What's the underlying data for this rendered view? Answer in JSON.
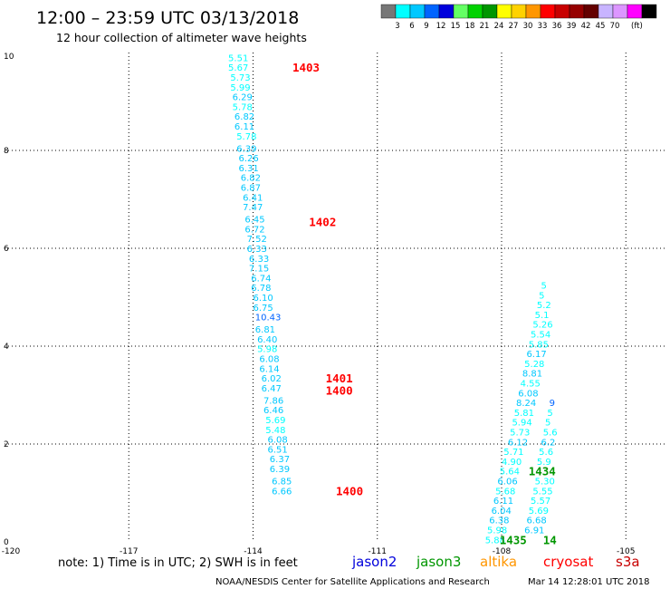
{
  "header": {
    "title": "12:00 – 23:59 UTC 03/13/2018",
    "subtitle": "12 hour collection of altimeter wave heights"
  },
  "colorbar": {
    "colors": [
      "#777777",
      "#00ffff",
      "#00c8ff",
      "#0064ff",
      "#0000dc",
      "#64ff64",
      "#00d200",
      "#009600",
      "#ffff00",
      "#ffd200",
      "#ff9600",
      "#ff0000",
      "#c80000",
      "#960000",
      "#640000",
      "#c8b4ff",
      "#dc96ff",
      "#ff00ff",
      "#000000"
    ],
    "labels": [
      "3",
      "6",
      "9",
      "12",
      "15",
      "18",
      "21",
      "24",
      "27",
      "30",
      "33",
      "36",
      "39",
      "42",
      "45",
      "70"
    ],
    "unit": "(ft)"
  },
  "notes": {
    "note": "note:  1) Time is in UTC;  2) SWH is in feet",
    "footer_left": "NOAA/NESDIS Center for Satellite Applications and Research",
    "footer_right": "Mar 14 12:28:01 UTC 2018"
  },
  "satellites": [
    {
      "name": "jason2",
      "color": "#0000dc"
    },
    {
      "name": "jason3",
      "color": "#009600"
    },
    {
      "name": "altika",
      "color": "#ff9600"
    },
    {
      "name": "cryosat",
      "color": "#ff0000"
    },
    {
      "name": "s3a",
      "color": "#c80000"
    }
  ],
  "chart_data": {
    "type": "scatter",
    "xlim": [
      -120,
      -104
    ],
    "ylim": [
      0,
      10
    ],
    "x_ticks": [
      "-120",
      "-117",
      "-114",
      "-111",
      "-108",
      "-105"
    ],
    "y_ticks": [
      "0",
      "2",
      "4",
      "6",
      "8",
      "10"
    ],
    "grid": true,
    "tracks": [
      {
        "name": "track-1",
        "points": [
          {
            "x": -114.6,
            "y": 9.9,
            "label": "5.51",
            "color": "#00ffff"
          },
          {
            "x": -114.6,
            "y": 9.7,
            "label": "5.67",
            "color": "#00ffff"
          },
          {
            "x": -114.55,
            "y": 9.5,
            "label": "5.73",
            "color": "#00ffff"
          },
          {
            "x": -114.55,
            "y": 9.3,
            "label": "5.99",
            "color": "#00ffff"
          },
          {
            "x": -114.5,
            "y": 9.1,
            "label": "6.29",
            "color": "#00c8ff"
          },
          {
            "x": -114.5,
            "y": 8.9,
            "label": "5.78",
            "color": "#00ffff"
          },
          {
            "x": -114.45,
            "y": 8.7,
            "label": "6.82",
            "color": "#00c8ff"
          },
          {
            "x": -114.45,
            "y": 8.5,
            "label": "6.11",
            "color": "#00c8ff"
          },
          {
            "x": -114.4,
            "y": 8.3,
            "label": "5.78",
            "color": "#00ffff"
          },
          {
            "x": -114.4,
            "y": 8.05,
            "label": "6.39",
            "color": "#00c8ff"
          },
          {
            "x": -114.35,
            "y": 7.85,
            "label": "6.26",
            "color": "#00c8ff"
          },
          {
            "x": -114.35,
            "y": 7.65,
            "label": "6.31",
            "color": "#00c8ff"
          },
          {
            "x": -114.3,
            "y": 7.45,
            "label": "6.82",
            "color": "#00c8ff"
          },
          {
            "x": -114.3,
            "y": 7.25,
            "label": "6.87",
            "color": "#00c8ff"
          },
          {
            "x": -114.25,
            "y": 7.05,
            "label": "6.41",
            "color": "#00c8ff"
          },
          {
            "x": -114.25,
            "y": 6.85,
            "label": "7.47",
            "color": "#00c8ff"
          },
          {
            "x": -114.2,
            "y": 6.6,
            "label": "6.45",
            "color": "#00c8ff"
          },
          {
            "x": -114.2,
            "y": 6.4,
            "label": "6.72",
            "color": "#00c8ff"
          },
          {
            "x": -114.15,
            "y": 6.2,
            "label": "7.52",
            "color": "#00c8ff"
          },
          {
            "x": -114.15,
            "y": 6.0,
            "label": "6.33",
            "color": "#00c8ff"
          },
          {
            "x": -114.1,
            "y": 5.8,
            "label": "6.33",
            "color": "#00c8ff"
          },
          {
            "x": -114.1,
            "y": 5.6,
            "label": "7.15",
            "color": "#00c8ff"
          },
          {
            "x": -114.05,
            "y": 5.4,
            "label": "6.74",
            "color": "#00c8ff"
          },
          {
            "x": -114.05,
            "y": 5.2,
            "label": "6.78",
            "color": "#00c8ff"
          },
          {
            "x": -114.0,
            "y": 5.0,
            "label": "6.10",
            "color": "#00c8ff"
          },
          {
            "x": -114.0,
            "y": 4.8,
            "label": "6.75",
            "color": "#00c8ff"
          },
          {
            "x": -113.95,
            "y": 4.6,
            "label": "10.43",
            "color": "#0064ff"
          },
          {
            "x": -113.95,
            "y": 4.35,
            "label": "6.81",
            "color": "#00c8ff"
          },
          {
            "x": -113.9,
            "y": 4.15,
            "label": "6.40",
            "color": "#00c8ff"
          },
          {
            "x": -113.9,
            "y": 3.95,
            "label": "5.98",
            "color": "#00ffff"
          },
          {
            "x": -113.85,
            "y": 3.75,
            "label": "6.08",
            "color": "#00c8ff"
          },
          {
            "x": -113.85,
            "y": 3.55,
            "label": "6.14",
            "color": "#00c8ff"
          },
          {
            "x": -113.8,
            "y": 3.35,
            "label": "6.02",
            "color": "#00c8ff"
          },
          {
            "x": -113.8,
            "y": 3.15,
            "label": "6.47",
            "color": "#00c8ff"
          },
          {
            "x": -113.75,
            "y": 2.9,
            "label": "7.86",
            "color": "#00c8ff"
          },
          {
            "x": -113.75,
            "y": 2.7,
            "label": "6.46",
            "color": "#00c8ff"
          },
          {
            "x": -113.7,
            "y": 2.5,
            "label": "5.69",
            "color": "#00ffff"
          },
          {
            "x": -113.7,
            "y": 2.3,
            "label": "5.48",
            "color": "#00ffff"
          },
          {
            "x": -113.65,
            "y": 2.1,
            "label": "6.08",
            "color": "#00c8ff"
          },
          {
            "x": -113.65,
            "y": 1.9,
            "label": "6.51",
            "color": "#00c8ff"
          },
          {
            "x": -113.6,
            "y": 1.7,
            "label": "6.37",
            "color": "#00c8ff"
          },
          {
            "x": -113.6,
            "y": 1.5,
            "label": "6.39",
            "color": "#00c8ff"
          },
          {
            "x": -113.55,
            "y": 1.25,
            "label": "6.85",
            "color": "#00c8ff"
          },
          {
            "x": -113.55,
            "y": 1.05,
            "label": "6.66",
            "color": "#00c8ff"
          }
        ]
      },
      {
        "name": "track-2",
        "points": [
          {
            "x": -108.4,
            "y": 0.05,
            "label": "5.88",
            "color": "#00ffff"
          },
          {
            "x": -108.35,
            "y": 0.25,
            "label": "5.98",
            "color": "#00ffff"
          },
          {
            "x": -108.3,
            "y": 0.45,
            "label": "6.38",
            "color": "#00c8ff"
          },
          {
            "x": -108.25,
            "y": 0.65,
            "label": "6.04",
            "color": "#00c8ff"
          },
          {
            "x": -108.2,
            "y": 0.85,
            "label": "6.11",
            "color": "#00c8ff"
          },
          {
            "x": -108.15,
            "y": 1.05,
            "label": "5.68",
            "color": "#00ffff"
          },
          {
            "x": -108.1,
            "y": 1.25,
            "label": "6.06",
            "color": "#00c8ff"
          },
          {
            "x": -108.05,
            "y": 1.45,
            "label": "5.64",
            "color": "#00ffff"
          },
          {
            "x": -108.0,
            "y": 1.65,
            "label": "4.90",
            "color": "#00ffff"
          },
          {
            "x": -107.95,
            "y": 1.85,
            "label": "5.71",
            "color": "#00ffff"
          },
          {
            "x": -107.85,
            "y": 2.05,
            "label": "6.12",
            "color": "#00c8ff"
          },
          {
            "x": -107.8,
            "y": 2.25,
            "label": "5.73",
            "color": "#00ffff"
          },
          {
            "x": -107.75,
            "y": 2.45,
            "label": "5.94",
            "color": "#00ffff"
          },
          {
            "x": -107.7,
            "y": 2.65,
            "label": "5.81",
            "color": "#00ffff"
          },
          {
            "x": -107.65,
            "y": 2.85,
            "label": "8.24",
            "color": "#00c8ff"
          },
          {
            "x": -107.6,
            "y": 3.05,
            "label": "6.08",
            "color": "#00c8ff"
          },
          {
            "x": -107.55,
            "y": 3.25,
            "label": "4.55",
            "color": "#00ffff"
          },
          {
            "x": -107.5,
            "y": 3.45,
            "label": "8.81",
            "color": "#00c8ff"
          },
          {
            "x": -107.45,
            "y": 3.65,
            "label": "5.28",
            "color": "#00ffff"
          },
          {
            "x": -107.4,
            "y": 3.85,
            "label": "6.17",
            "color": "#00c8ff"
          },
          {
            "x": -107.35,
            "y": 4.05,
            "label": "5.85",
            "color": "#00ffff"
          },
          {
            "x": -107.3,
            "y": 4.25,
            "label": "5.54",
            "color": "#00ffff"
          },
          {
            "x": -107.25,
            "y": 4.45,
            "label": "5.26",
            "color": "#00ffff"
          },
          {
            "x": -107.2,
            "y": 4.65,
            "label": "5.1",
            "color": "#00ffff"
          },
          {
            "x": -107.15,
            "y": 4.85,
            "label": "5.2",
            "color": "#00ffff"
          },
          {
            "x": -107.1,
            "y": 5.05,
            "label": "5",
            "color": "#00ffff"
          },
          {
            "x": -107.05,
            "y": 5.25,
            "label": "5",
            "color": "#00ffff"
          }
        ]
      },
      {
        "name": "track-3",
        "points": [
          {
            "x": -107.45,
            "y": 0.25,
            "label": "6.91",
            "color": "#00c8ff"
          },
          {
            "x": -107.4,
            "y": 0.45,
            "label": "6.68",
            "color": "#00c8ff"
          },
          {
            "x": -107.35,
            "y": 0.65,
            "label": "5.69",
            "color": "#00ffff"
          },
          {
            "x": -107.3,
            "y": 0.85,
            "label": "5.57",
            "color": "#00ffff"
          },
          {
            "x": -107.25,
            "y": 1.05,
            "label": "5.55",
            "color": "#00ffff"
          },
          {
            "x": -107.2,
            "y": 1.25,
            "label": "5.30",
            "color": "#00ffff"
          },
          {
            "x": -107.15,
            "y": 1.65,
            "label": "5.9",
            "color": "#00ffff"
          },
          {
            "x": -107.1,
            "y": 1.85,
            "label": "5.6",
            "color": "#00ffff"
          },
          {
            "x": -107.05,
            "y": 2.05,
            "label": "6.2",
            "color": "#00c8ff"
          },
          {
            "x": -107.0,
            "y": 2.25,
            "label": "5.6",
            "color": "#00ffff"
          },
          {
            "x": -106.95,
            "y": 2.45,
            "label": "5",
            "color": "#00ffff"
          },
          {
            "x": -106.9,
            "y": 2.65,
            "label": "5",
            "color": "#00ffff"
          },
          {
            "x": -106.85,
            "y": 2.85,
            "label": "9",
            "color": "#0064ff"
          }
        ]
      }
    ],
    "time_labels": [
      {
        "x": -113.05,
        "y": 9.7,
        "label": "1403",
        "color": "#ff0000"
      },
      {
        "x": -112.65,
        "y": 6.55,
        "label": "1402",
        "color": "#ff0000"
      },
      {
        "x": -112.25,
        "y": 3.35,
        "label": "1401",
        "color": "#ff0000"
      },
      {
        "x": -112.25,
        "y": 3.1,
        "label": "1400",
        "color": "#ff0000"
      },
      {
        "x": -112.0,
        "y": 1.05,
        "label": "1400",
        "color": "#ff0000"
      },
      {
        "x": -107.35,
        "y": 1.45,
        "label": "1434",
        "color": "#009600"
      },
      {
        "x": -108.05,
        "y": 0.05,
        "label": "1435",
        "color": "#009600"
      },
      {
        "x": -107.0,
        "y": 0.05,
        "label": "14",
        "color": "#009600"
      }
    ]
  }
}
